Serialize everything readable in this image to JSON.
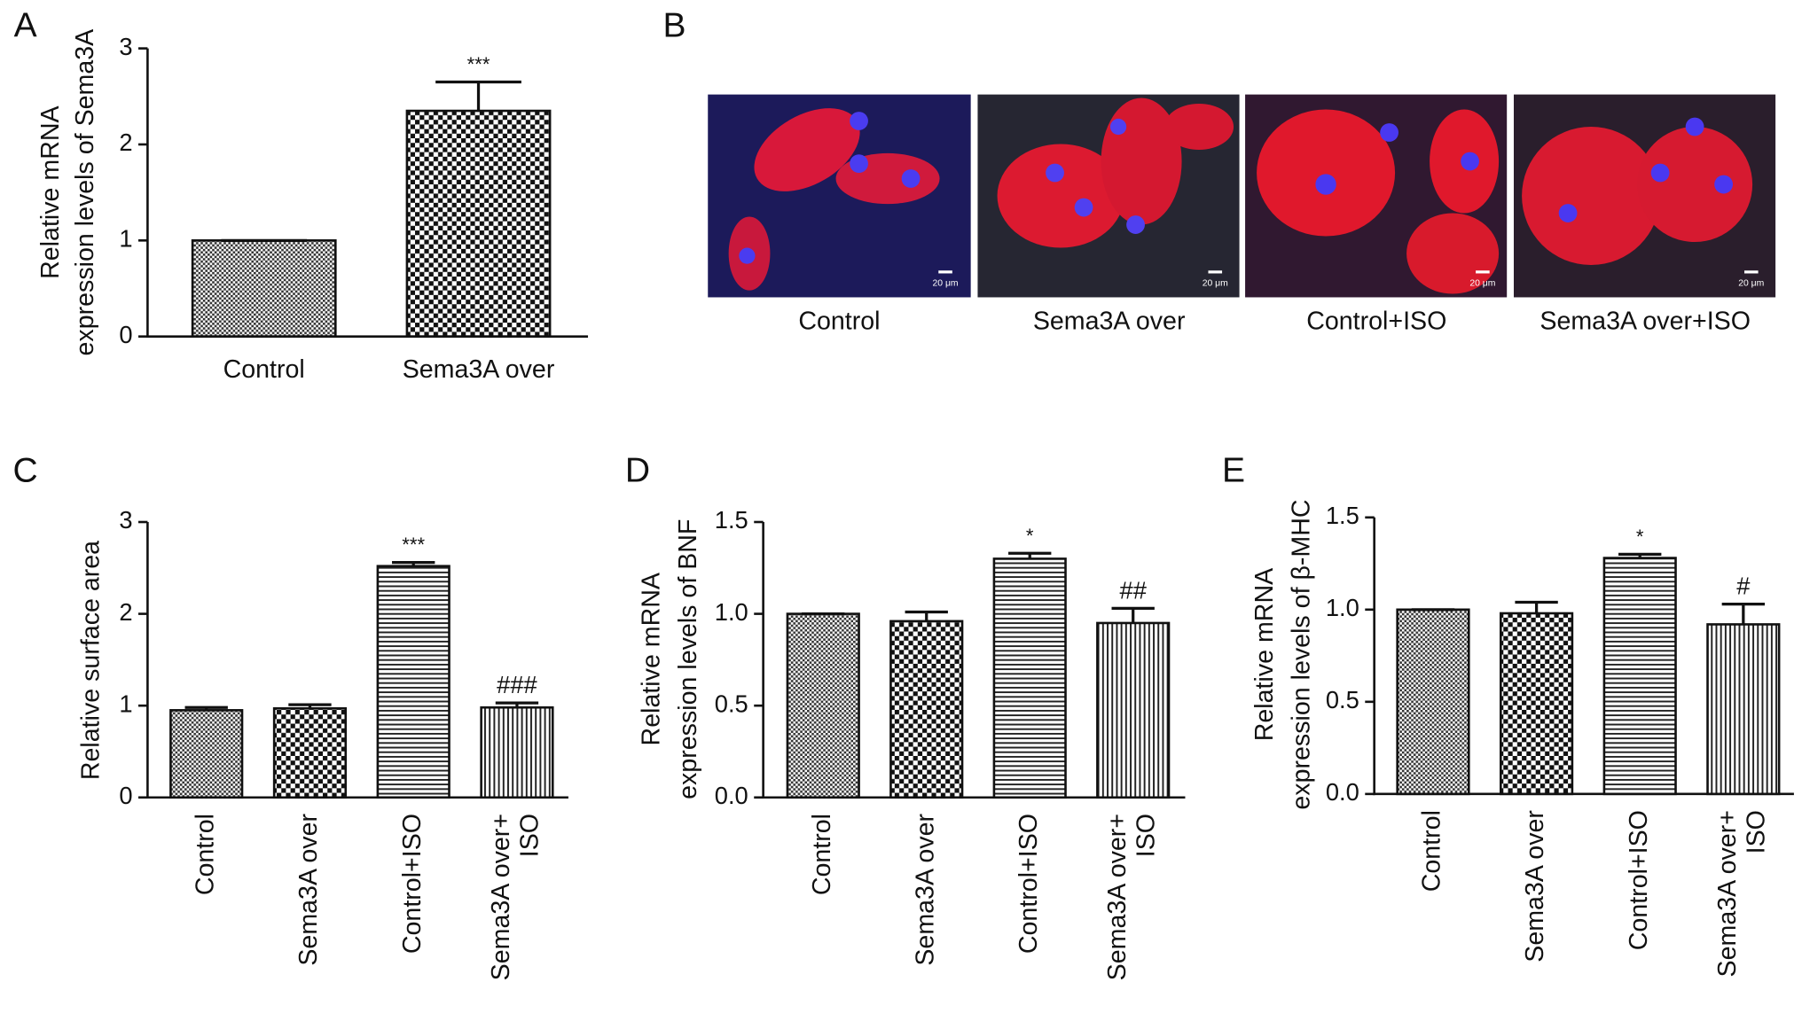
{
  "chart_data": [
    {
      "type": "bar",
      "label": "A",
      "y_label": [
        "Relative mRNA",
        "expression levels of Sema3A"
      ],
      "categories": [
        "Control",
        "Sema3A over"
      ],
      "values": [
        1.0,
        2.35
      ],
      "errors": [
        0,
        0.3
      ],
      "annotations": [
        null,
        "***"
      ],
      "patterns": [
        "checker-fine",
        "checker"
      ],
      "ylim": [
        0,
        3
      ],
      "yticks": [
        0,
        1,
        2,
        3
      ]
    },
    {
      "type": "bar",
      "label": "C",
      "y_label": [
        "Relative surface area"
      ],
      "categories": [
        "Control",
        "Sema3A over",
        "Control+ISO",
        [
          "Sema3A over+",
          "ISO"
        ]
      ],
      "values": [
        0.95,
        0.97,
        2.52,
        0.98
      ],
      "errors": [
        0.03,
        0.04,
        0.04,
        0.05
      ],
      "annotations": [
        null,
        null,
        "***",
        "###"
      ],
      "patterns": [
        "checker-fine",
        "checker",
        "horizontal",
        "vertical"
      ],
      "ylim": [
        0,
        3
      ],
      "yticks": [
        0,
        1,
        2,
        3
      ]
    },
    {
      "type": "bar",
      "label": "D",
      "y_label": [
        "Relative mRNA",
        "expression levels of BNF"
      ],
      "categories": [
        "Control",
        "Sema3A over",
        "Control+ISO",
        [
          "Sema3A over+",
          "ISO"
        ]
      ],
      "values": [
        1.0,
        0.96,
        1.3,
        0.95
      ],
      "errors": [
        0,
        0.05,
        0.03,
        0.08
      ],
      "annotations": [
        null,
        null,
        "*",
        "##"
      ],
      "patterns": [
        "checker-fine",
        "checker",
        "horizontal",
        "vertical"
      ],
      "ylim": [
        0,
        1.5
      ],
      "yticks": [
        {
          "value": 0,
          "label": "0.0"
        },
        0.5,
        {
          "value": 1,
          "label": "1.0"
        },
        1.5
      ]
    },
    {
      "type": "bar",
      "label": "E",
      "y_label": [
        "Relative mRNA",
        "expression levels of β-MHC"
      ],
      "categories": [
        "Control",
        "Sema3A over",
        "Control+ISO",
        [
          "Sema3A over+",
          "ISO"
        ]
      ],
      "values": [
        1.0,
        0.98,
        1.28,
        0.92
      ],
      "errors": [
        0,
        0.06,
        0.02,
        0.11
      ],
      "annotations": [
        null,
        null,
        "*",
        "#"
      ],
      "patterns": [
        "checker-fine",
        "checker",
        "horizontal",
        "vertical"
      ],
      "ylim": [
        0,
        1.5
      ],
      "yticks": [
        {
          "value": 0,
          "label": "0.0"
        },
        0.5,
        {
          "value": 1,
          "label": "1.0"
        },
        1.5
      ]
    }
  ],
  "panel_b": {
    "label": "B",
    "images": [
      {
        "caption": "Control",
        "scale_bar": "20 μm"
      },
      {
        "caption": "Sema3A over",
        "scale_bar": "20 μm"
      },
      {
        "caption": "Control+ISO",
        "scale_bar": "20 μm"
      },
      {
        "caption": "Sema3A over+ISO",
        "scale_bar": "20 μm"
      }
    ]
  }
}
